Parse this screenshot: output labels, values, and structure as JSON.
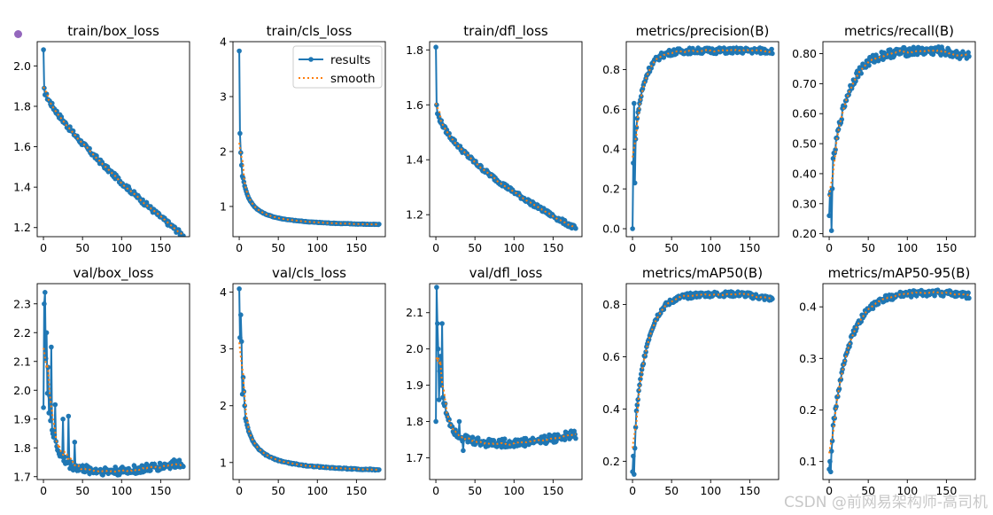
{
  "colors": {
    "results": "#1f77b4",
    "smooth": "#ff7f0e",
    "dot": "#9467bd"
  },
  "watermark": "CSDN @前网易架构师-高司机",
  "legend": {
    "results": "results",
    "smooth": "smooth"
  },
  "chart_data": [
    {
      "type": "line",
      "title": "train/box_loss",
      "xlim": [
        -8,
        187
      ],
      "ylim": [
        1.155,
        2.12
      ],
      "xticks": [
        0,
        50,
        100,
        150
      ],
      "yticks": [
        1.2,
        1.4,
        1.6,
        1.8,
        2.0
      ],
      "curve": {
        "kind": "decay",
        "y0": 2.08,
        "y1": 1.89,
        "yend": 1.16,
        "p": 0.77,
        "noise": 0.012,
        "spikes": []
      }
    },
    {
      "type": "line",
      "title": "train/cls_loss",
      "xlim": [
        -8,
        187
      ],
      "ylim": [
        0.45,
        4.0
      ],
      "xticks": [
        0,
        50,
        100,
        150
      ],
      "yticks": [
        1,
        2,
        3,
        4
      ],
      "legend": [
        "results",
        "smooth"
      ],
      "curve": {
        "kind": "hyper",
        "y0": 3.83,
        "y1": 2.33,
        "yend": 0.62,
        "k": 0.1,
        "noise": 0.006,
        "spikes": [
          [
            2,
            1.98
          ],
          [
            3,
            1.75
          ],
          [
            4,
            1.55
          ]
        ]
      }
    },
    {
      "type": "line",
      "title": "train/dfl_loss",
      "xlim": [
        -8,
        187
      ],
      "ylim": [
        1.12,
        1.83
      ],
      "xticks": [
        0,
        50,
        100,
        150
      ],
      "yticks": [
        1.2,
        1.4,
        1.6,
        1.8
      ],
      "curve": {
        "kind": "decay",
        "y0": 1.81,
        "y1": 1.6,
        "yend": 1.15,
        "p": 0.6,
        "noise": 0.008,
        "spikes": []
      }
    },
    {
      "type": "line",
      "title": "metrics/precision(B)",
      "xlim": [
        -8,
        187
      ],
      "ylim": [
        -0.04,
        0.94
      ],
      "xticks": [
        0,
        50,
        100,
        150
      ],
      "yticks": [
        0.0,
        0.2,
        0.4,
        0.6,
        0.8
      ],
      "curve": {
        "kind": "rise",
        "y0": 0.0,
        "y1": 0.33,
        "yend": 0.895,
        "t": 12,
        "noise": 0.015,
        "spikes": [
          [
            2,
            0.63
          ],
          [
            3,
            0.23
          ],
          [
            4,
            0.45
          ]
        ]
      }
    },
    {
      "type": "line",
      "title": "metrics/recall(B)",
      "xlim": [
        -8,
        187
      ],
      "ylim": [
        0.19,
        0.84
      ],
      "xticks": [
        0,
        50,
        100,
        150
      ],
      "yticks": [
        0.2,
        0.3,
        0.4,
        0.5,
        0.6,
        0.7,
        0.8
      ],
      "curve": {
        "kind": "riseFall",
        "y0": 0.26,
        "y1": 0.33,
        "yend": 0.81,
        "t": 20,
        "noise": 0.015,
        "spikes": [
          [
            2,
            0.34
          ],
          [
            3,
            0.21
          ],
          [
            4,
            0.35
          ]
        ]
      }
    },
    {
      "type": "line",
      "title": "val/box_loss",
      "xlim": [
        -8,
        187
      ],
      "ylim": [
        1.69,
        2.37
      ],
      "xticks": [
        0,
        50,
        100,
        150
      ],
      "yticks": [
        1.7,
        1.8,
        1.9,
        2.0,
        2.1,
        2.2,
        2.3
      ],
      "curve": {
        "kind": "valdecay",
        "y0": 1.94,
        "y1": 2.3,
        "yend": 1.74,
        "t": 10,
        "noise": 0.015,
        "spikes": [
          [
            2,
            2.34
          ],
          [
            3,
            2.11
          ],
          [
            4,
            2.2
          ],
          [
            6,
            2.08
          ],
          [
            8,
            1.98
          ],
          [
            10,
            2.15
          ],
          [
            15,
            1.95
          ],
          [
            25,
            1.9
          ],
          [
            32,
            1.91
          ],
          [
            40,
            1.82
          ]
        ]
      }
    },
    {
      "type": "line",
      "title": "val/cls_loss",
      "xlim": [
        -8,
        187
      ],
      "ylim": [
        0.7,
        4.15
      ],
      "xticks": [
        0,
        50,
        100,
        150
      ],
      "yticks": [
        1,
        2,
        3,
        4
      ],
      "curve": {
        "kind": "hyper",
        "y0": 4.06,
        "y1": 3.2,
        "yend": 0.8,
        "k": 0.1,
        "noise": 0.01,
        "spikes": [
          [
            2,
            3.6
          ],
          [
            3,
            3.13
          ],
          [
            5,
            2.5
          ],
          [
            6,
            2.25
          ],
          [
            7,
            2.0
          ]
        ]
      }
    },
    {
      "type": "line",
      "title": "val/dfl_loss",
      "xlim": [
        -8,
        187
      ],
      "ylim": [
        1.64,
        2.18
      ],
      "xticks": [
        0,
        50,
        100,
        150
      ],
      "yticks": [
        1.7,
        1.8,
        1.9,
        2.0,
        2.1
      ],
      "curve": {
        "kind": "valdecay",
        "y0": 1.8,
        "y1": 2.17,
        "yend": 1.755,
        "t": 10,
        "noise": 0.012,
        "spikes": [
          [
            2,
            2.07
          ],
          [
            3,
            2.0
          ],
          [
            4,
            1.86
          ],
          [
            6,
            1.98
          ],
          [
            8,
            2.07
          ],
          [
            10,
            1.85
          ],
          [
            30,
            1.8
          ],
          [
            35,
            1.72
          ]
        ]
      }
    },
    {
      "type": "line",
      "title": "metrics/mAP50(B)",
      "xlim": [
        -8,
        187
      ],
      "ylim": [
        0.13,
        0.88
      ],
      "xticks": [
        0,
        50,
        100,
        150
      ],
      "yticks": [
        0.2,
        0.4,
        0.6,
        0.8
      ],
      "curve": {
        "kind": "riseFall",
        "y0": 0.16,
        "y1": 0.22,
        "yend": 0.84,
        "t": 16,
        "noise": 0.01,
        "spikes": [
          [
            2,
            0.15
          ],
          [
            3,
            0.25
          ],
          [
            4,
            0.33
          ]
        ]
      }
    },
    {
      "type": "line",
      "title": "metrics/mAP50-95(B)",
      "xlim": [
        -8,
        187
      ],
      "ylim": [
        0.065,
        0.445
      ],
      "xticks": [
        0,
        50,
        100,
        150
      ],
      "yticks": [
        0.1,
        0.2,
        0.3,
        0.4
      ],
      "curve": {
        "kind": "riseFall",
        "y0": 0.085,
        "y1": 0.1,
        "yend": 0.428,
        "t": 22,
        "noise": 0.006,
        "spikes": [
          [
            2,
            0.08
          ],
          [
            3,
            0.12
          ],
          [
            4,
            0.14
          ]
        ]
      }
    }
  ]
}
